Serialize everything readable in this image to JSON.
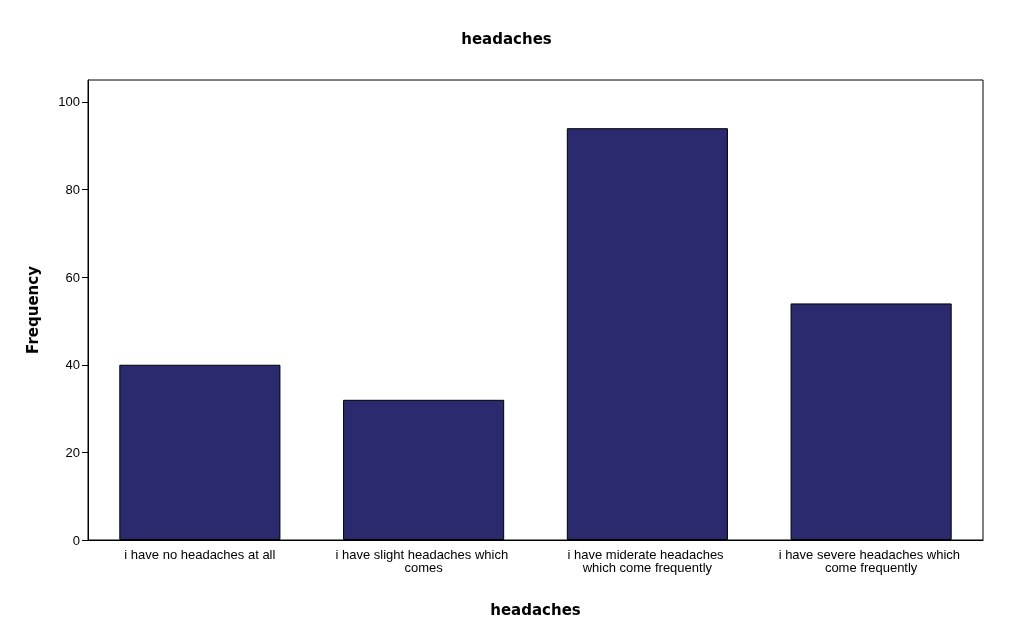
{
  "chart_data": {
    "type": "bar",
    "title": "headaches",
    "xlabel": "headaches",
    "ylabel": "Frequency",
    "categories": [
      "i have no headaches at all",
      "i have slight headaches which comes",
      "i have miderate headaches which come frequently",
      "i have severe headaches which come frequently"
    ],
    "values": [
      40,
      32,
      94,
      54
    ],
    "color": "#2b2a6e",
    "ylim": [
      0,
      105
    ],
    "yticks": [
      0,
      20,
      40,
      60,
      80,
      100
    ],
    "grid": false
  }
}
